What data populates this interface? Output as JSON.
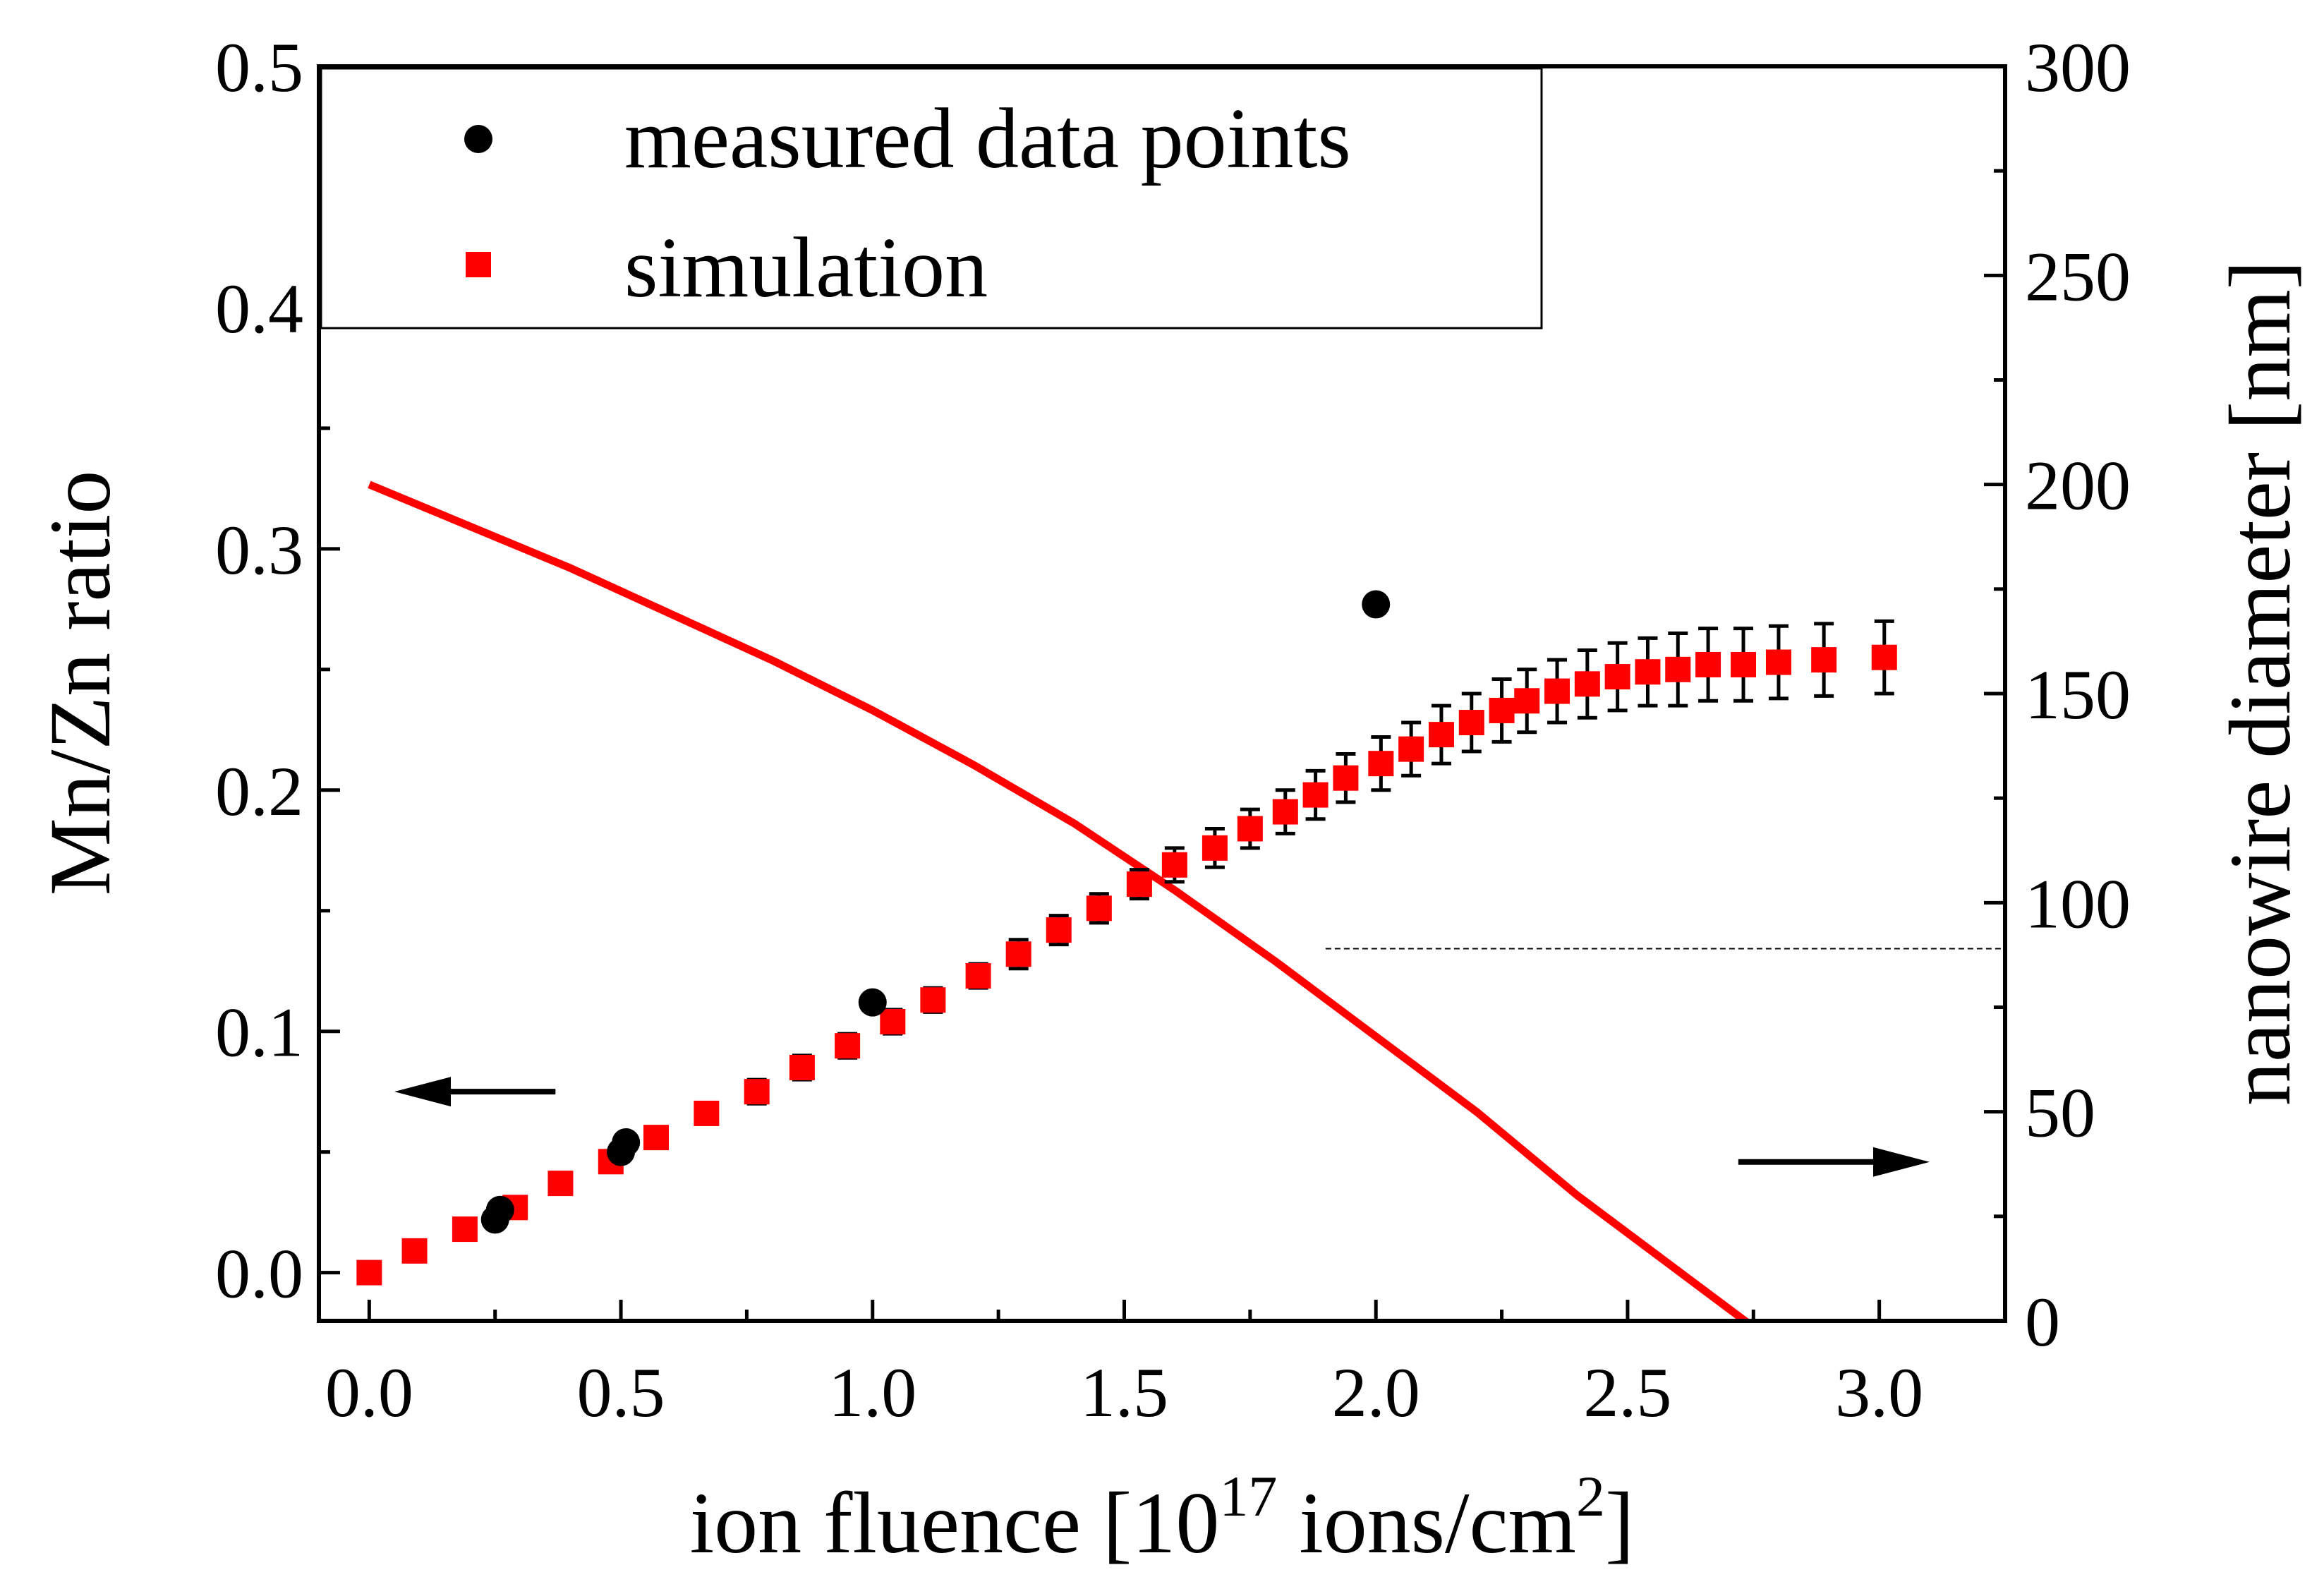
{
  "chart_data": {
    "type": "scatter",
    "xlabel": {
      "pre": "ion fluence [10",
      "sup": "17",
      "mid": " ions/cm",
      "sup2": "2",
      "post": "]"
    },
    "ylabel_left": "Mn/Zn ratio",
    "ylabel_right": "nanowire diameter [nm]",
    "xlim": [
      -0.1,
      3.25
    ],
    "ylim_left": [
      -0.02,
      0.5
    ],
    "ylim_right": [
      0,
      300
    ],
    "x_ticks": [
      "0.0",
      "0.5",
      "1.0",
      "1.5",
      "2.0",
      "2.5",
      "3.0"
    ],
    "y_left_ticks": [
      "0.0",
      "0.1",
      "0.2",
      "0.3",
      "0.4",
      "0.5"
    ],
    "y_right_ticks": [
      "0",
      "50",
      "100",
      "150",
      "200",
      "250",
      "300"
    ],
    "legend": {
      "placement": "top-left",
      "entries": [
        {
          "label": "measured data points",
          "marker": "circle",
          "color": "#000000"
        },
        {
          "label": "simulation",
          "marker": "square",
          "color": "#ff0000"
        }
      ]
    },
    "series": [
      {
        "name": "measured data points",
        "axis": "left",
        "marker": "circle",
        "color": "#000000",
        "points": [
          [
            0.25,
            0.022
          ],
          [
            0.26,
            0.026
          ],
          [
            0.5,
            0.05
          ],
          [
            0.51,
            0.054
          ],
          [
            1.0,
            0.112
          ],
          [
            2.0,
            0.277
          ]
        ]
      },
      {
        "name": "simulation",
        "axis": "left",
        "marker": "square",
        "color": "#ff0000",
        "points": [
          [
            0.0,
            0.0,
            0.0
          ],
          [
            0.09,
            0.009,
            0.004
          ],
          [
            0.19,
            0.018,
            0.004
          ],
          [
            0.29,
            0.027,
            0.004
          ],
          [
            0.38,
            0.037,
            0.004
          ],
          [
            0.48,
            0.046,
            0.004
          ],
          [
            0.57,
            0.056,
            0.004
          ],
          [
            0.67,
            0.066,
            0.004
          ],
          [
            0.77,
            0.075,
            0.005
          ],
          [
            0.86,
            0.085,
            0.005
          ],
          [
            0.95,
            0.094,
            0.005
          ],
          [
            1.04,
            0.104,
            0.005
          ],
          [
            1.12,
            0.113,
            0.005
          ],
          [
            1.21,
            0.123,
            0.005
          ],
          [
            1.29,
            0.132,
            0.006
          ],
          [
            1.37,
            0.142,
            0.006
          ],
          [
            1.45,
            0.151,
            0.006
          ],
          [
            1.53,
            0.161,
            0.006
          ],
          [
            1.6,
            0.169,
            0.007
          ],
          [
            1.68,
            0.176,
            0.008
          ],
          [
            1.75,
            0.184,
            0.008
          ],
          [
            1.82,
            0.191,
            0.009
          ],
          [
            1.88,
            0.198,
            0.01
          ],
          [
            1.94,
            0.205,
            0.01
          ],
          [
            2.01,
            0.211,
            0.011
          ],
          [
            2.07,
            0.217,
            0.011
          ],
          [
            2.13,
            0.223,
            0.012
          ],
          [
            2.19,
            0.228,
            0.012
          ],
          [
            2.25,
            0.233,
            0.013
          ],
          [
            2.3,
            0.237,
            0.013
          ],
          [
            2.36,
            0.241,
            0.013
          ],
          [
            2.42,
            0.244,
            0.014
          ],
          [
            2.48,
            0.247,
            0.014
          ],
          [
            2.54,
            0.249,
            0.014
          ],
          [
            2.6,
            0.25,
            0.015
          ],
          [
            2.66,
            0.252,
            0.015
          ],
          [
            2.73,
            0.252,
            0.015
          ],
          [
            2.8,
            0.253,
            0.015
          ],
          [
            2.89,
            0.254,
            0.015
          ],
          [
            3.01,
            0.255,
            0.015
          ]
        ]
      },
      {
        "name": "nanowire diameter",
        "axis": "right",
        "type": "line",
        "color": "#ff0000",
        "points": [
          [
            0.0,
            200
          ],
          [
            0.2,
            190
          ],
          [
            0.4,
            180
          ],
          [
            0.6,
            169
          ],
          [
            0.8,
            158
          ],
          [
            1.0,
            146
          ],
          [
            1.2,
            133
          ],
          [
            1.4,
            119
          ],
          [
            1.6,
            103
          ],
          [
            1.8,
            86
          ],
          [
            2.0,
            68
          ],
          [
            2.2,
            50
          ],
          [
            2.4,
            30
          ],
          [
            2.6,
            12
          ],
          [
            2.8,
            -6
          ],
          [
            2.9,
            -13
          ],
          [
            3.0,
            -19
          ]
        ]
      }
    ],
    "reference_line": {
      "axis": "right",
      "y": 89,
      "x_from": 1.9,
      "style": "dashed"
    },
    "annotations": [
      {
        "type": "arrow",
        "direction": "left",
        "x": [
          0.05,
          0.37
        ],
        "y_axis": "left",
        "y": 0.075
      },
      {
        "type": "arrow",
        "direction": "right",
        "x": [
          2.72,
          3.1
        ],
        "y_axis": "right",
        "y": 38
      }
    ]
  }
}
